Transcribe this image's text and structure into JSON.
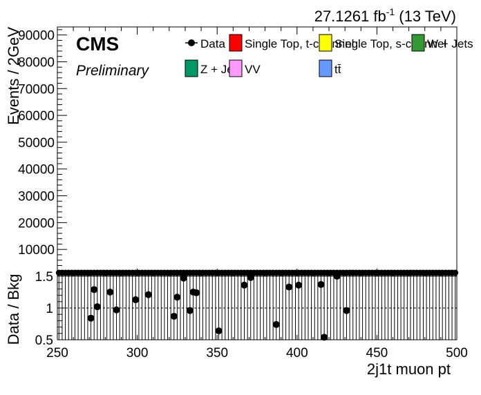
{
  "header": {
    "lumi_value": "27.1261 fb",
    "lumi_exp": "-1",
    "energy": " (13 TeV)"
  },
  "cms": {
    "label": "CMS",
    "sublabel": "Preliminary"
  },
  "legend": [
    {
      "label": "Data",
      "kind": "marker",
      "color": "#000000"
    },
    {
      "label": "Single Top, t-channel",
      "kind": "box",
      "color": "#ff0000"
    },
    {
      "label": "Single Top, s-channel",
      "kind": "box",
      "color": "#ffff00"
    },
    {
      "label": "W + Jets",
      "kind": "box",
      "color": "#339933"
    },
    {
      "label": "Z + Jets",
      "kind": "box",
      "color": "#009966"
    },
    {
      "label": "VV",
      "kind": "box",
      "color": "#ff99ff"
    },
    {
      "label": "tt̄",
      "kind": "box",
      "color": "#6699ff"
    }
  ],
  "chart_data": [
    {
      "type": "scatter",
      "panel": "main",
      "ylabel": "Events / 2GeV",
      "xlim": [
        250,
        500
      ],
      "ylim": [
        0,
        93000
      ],
      "y_ticks": [
        "10000",
        "20000",
        "30000",
        "40000",
        "50000",
        "60000",
        "70000",
        "80000",
        "90000"
      ],
      "series": [
        {
          "name": "Data",
          "x_start": 251,
          "x_step": 2,
          "values": [
            0,
            0,
            0,
            0,
            0,
            0,
            0,
            0,
            0,
            0,
            0,
            0,
            0,
            0,
            0,
            0,
            0,
            0,
            0,
            0,
            0,
            0,
            0,
            0,
            0,
            0,
            0,
            0,
            0,
            0,
            0,
            0,
            0,
            0,
            0,
            0,
            0,
            0,
            0,
            0,
            0,
            0,
            0,
            0,
            0,
            0,
            0,
            0,
            0,
            0,
            0,
            0,
            0,
            0,
            0,
            0,
            0,
            0,
            0,
            0,
            0,
            0,
            0,
            0,
            0,
            0,
            0,
            0,
            0,
            0,
            0,
            0,
            0,
            0,
            0,
            0,
            0,
            0,
            0,
            0,
            0,
            0,
            0,
            0,
            0,
            0,
            0,
            0,
            0,
            0,
            0,
            0,
            0,
            0,
            0,
            0,
            0,
            0,
            0,
            0,
            0,
            0,
            0,
            0,
            0,
            0,
            0,
            0,
            0,
            0,
            0,
            0,
            0,
            0,
            0,
            0,
            0,
            0,
            0,
            0,
            0,
            0,
            0,
            0,
            0
          ]
        }
      ]
    },
    {
      "type": "scatter",
      "panel": "ratio",
      "xlabel": "2j1t muon pt",
      "ylabel": "Data / Bkg",
      "xlim": [
        250,
        500
      ],
      "ylim": [
        0.5,
        1.5
      ],
      "x_ticks": [
        "250",
        "300",
        "350",
        "400",
        "450",
        "500"
      ],
      "y_ticks": [
        "0.5",
        "1",
        "1.5"
      ],
      "reference_line": 1,
      "points": [
        {
          "x": 271,
          "y": 0.84
        },
        {
          "x": 273,
          "y": 1.29
        },
        {
          "x": 275,
          "y": 1.02
        },
        {
          "x": 283,
          "y": 1.25
        },
        {
          "x": 287,
          "y": 0.97
        },
        {
          "x": 299,
          "y": 1.13
        },
        {
          "x": 307,
          "y": 1.21
        },
        {
          "x": 323,
          "y": 0.87
        },
        {
          "x": 325,
          "y": 1.17
        },
        {
          "x": 329,
          "y": 1.47
        },
        {
          "x": 333,
          "y": 0.96
        },
        {
          "x": 335,
          "y": 1.25
        },
        {
          "x": 337,
          "y": 1.24
        },
        {
          "x": 351,
          "y": 0.64
        },
        {
          "x": 367,
          "y": 1.36
        },
        {
          "x": 371,
          "y": 1.48
        },
        {
          "x": 387,
          "y": 0.74
        },
        {
          "x": 395,
          "y": 1.33
        },
        {
          "x": 401,
          "y": 1.36
        },
        {
          "x": 415,
          "y": 1.37
        },
        {
          "x": 417,
          "y": 0.54
        },
        {
          "x": 425,
          "y": 1.5
        },
        {
          "x": 431,
          "y": 0.96
        }
      ]
    }
  ]
}
